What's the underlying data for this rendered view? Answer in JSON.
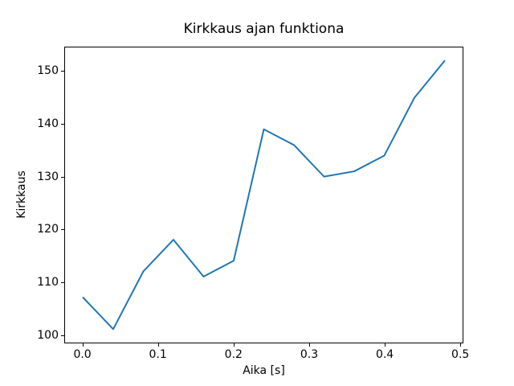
{
  "figure": {
    "background_color": "#ffffff",
    "text_color": "#000000"
  },
  "chart_data": {
    "type": "line",
    "title": "Kirkkaus ajan funktiona",
    "xlabel": "Aika [s]",
    "ylabel": "Kirkkaus",
    "x": [
      0.0,
      0.04,
      0.08,
      0.12,
      0.16,
      0.2,
      0.24,
      0.28,
      0.32,
      0.36,
      0.4,
      0.44,
      0.48
    ],
    "y": [
      107,
      101,
      112,
      118,
      111,
      114,
      139,
      136,
      130,
      131,
      134,
      145,
      152
    ],
    "line_color": "#1f77b4",
    "xlim": [
      -0.024,
      0.504
    ],
    "ylim": [
      98.45,
      154.55
    ],
    "xticks": [
      0.0,
      0.1,
      0.2,
      0.3,
      0.4,
      0.5
    ],
    "xtick_labels": [
      "0.0",
      "0.1",
      "0.2",
      "0.3",
      "0.4",
      "0.5"
    ],
    "yticks": [
      100,
      110,
      120,
      130,
      140,
      150
    ],
    "ytick_labels": [
      "100",
      "110",
      "120",
      "130",
      "140",
      "150"
    ],
    "grid": false,
    "legend": "none",
    "marker": "none"
  }
}
